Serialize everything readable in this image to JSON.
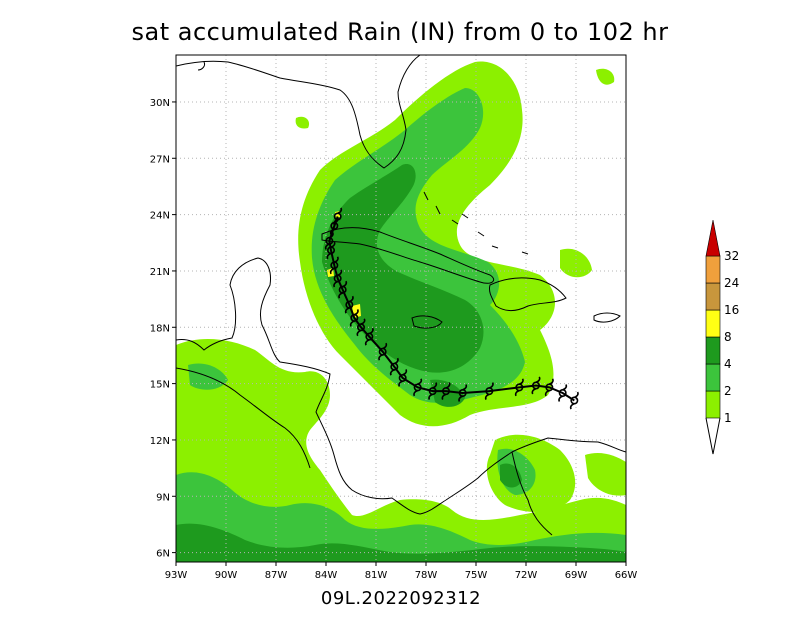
{
  "title": "sat accumulated Rain (IN) from 0 to 102 hr",
  "caption": "09L.2022092312",
  "map": {
    "lon_range": [
      -93,
      -66
    ],
    "lat_range": [
      5.5,
      32.5
    ],
    "x_ticks": [
      "93W",
      "90W",
      "87W",
      "84W",
      "81W",
      "78W",
      "75W",
      "72W",
      "69W",
      "66W"
    ],
    "y_ticks": [
      "6N",
      "9N",
      "12N",
      "15N",
      "18N",
      "21N",
      "24N",
      "27N",
      "30N"
    ],
    "grid": "dotted"
  },
  "colorbar": {
    "levels": [
      "1",
      "2",
      "4",
      "8",
      "16",
      "24",
      "32"
    ],
    "colors": [
      "#8cf000",
      "#3cc43c",
      "#1e9a1e",
      "#ffff14",
      "#c8963c",
      "#f0a03c",
      "#c80000"
    ]
  },
  "track": {
    "symbol": "tropical-cyclone-symbol",
    "points": [
      [
        -69.1,
        14.1
      ],
      [
        -69.8,
        14.5
      ],
      [
        -70.6,
        14.8
      ],
      [
        -71.4,
        14.9
      ],
      [
        -72.4,
        14.8
      ],
      [
        -74.2,
        14.6
      ],
      [
        -75.8,
        14.5
      ],
      [
        -76.8,
        14.6
      ],
      [
        -77.6,
        14.6
      ],
      [
        -78.5,
        14.8
      ],
      [
        -79.4,
        15.3
      ],
      [
        -79.9,
        15.9
      ],
      [
        -80.6,
        16.7
      ],
      [
        -81.4,
        17.5
      ],
      [
        -81.9,
        18.0
      ],
      [
        -82.3,
        18.5
      ],
      [
        -82.6,
        19.2
      ],
      [
        -83.0,
        20.0
      ],
      [
        -83.3,
        20.6
      ],
      [
        -83.5,
        21.3
      ],
      [
        -83.7,
        22.1
      ],
      [
        -83.8,
        22.6
      ],
      [
        -83.5,
        23.4
      ],
      [
        -83.3,
        23.9
      ]
    ]
  }
}
